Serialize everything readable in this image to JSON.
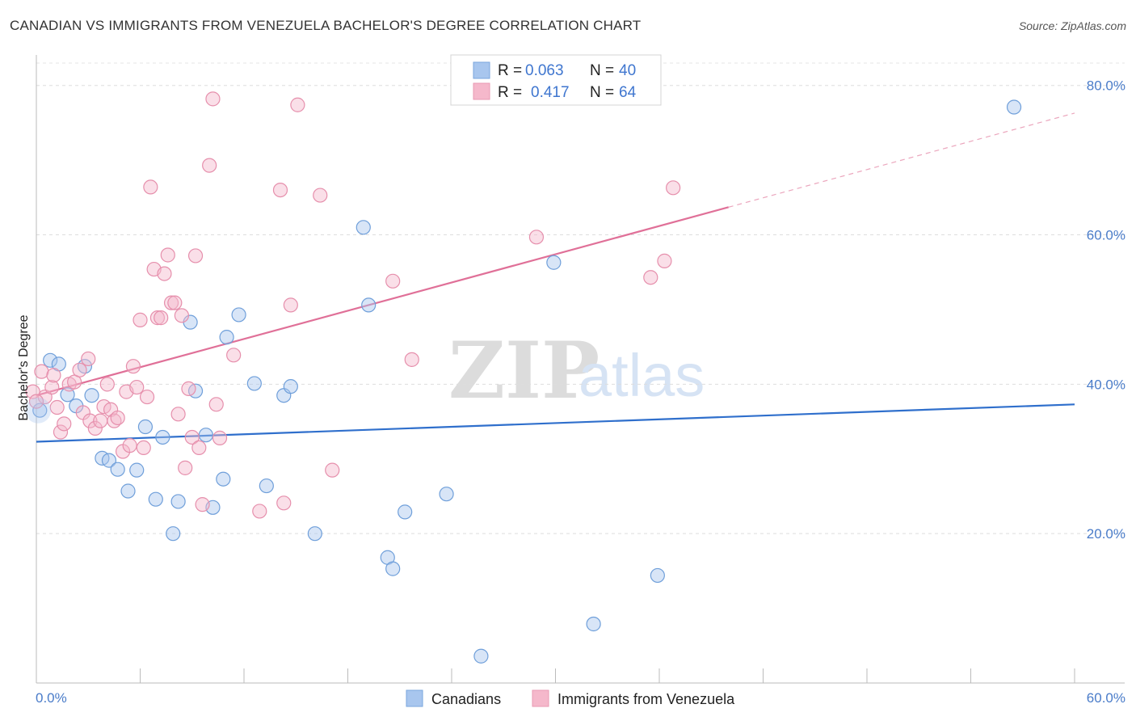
{
  "title": "CANADIAN VS IMMIGRANTS FROM VENEZUELA BACHELOR'S DEGREE CORRELATION CHART",
  "source": "Source: ZipAtlas.com",
  "watermark": {
    "zip": "ZIP",
    "atlas": "atlas"
  },
  "legend_top": [
    {
      "r_label": "R =",
      "r_value": "0.063",
      "n_label": "N =",
      "n_value": "40"
    },
    {
      "r_label": "R =",
      "r_value": "0.417",
      "n_label": "N =",
      "n_value": "64"
    }
  ],
  "legend_bottom": [
    "Canadians",
    "Immigrants from Venezuela"
  ],
  "chart_data": {
    "type": "scatter",
    "title": "CANADIAN VS IMMIGRANTS FROM VENEZUELA BACHELOR'S DEGREE CORRELATION CHART",
    "xlabel": "",
    "ylabel": "Bachelor's Degree",
    "xlim": [
      0,
      60
    ],
    "ylim": [
      0,
      83
    ],
    "x_tick_labels": [
      "0.0%",
      "60.0%"
    ],
    "y_ticks": [
      20,
      40,
      60,
      80
    ],
    "y_tick_labels": [
      "20.0%",
      "40.0%",
      "60.0%",
      "80.0%"
    ],
    "grid": true,
    "colors": {
      "canadians": "#a8c6ee",
      "canadians_line": "#2f6fcc",
      "venezuela": "#f5b8cb",
      "venezuela_line": "#e07098"
    },
    "series": [
      {
        "name": "Canadians",
        "r": 0.063,
        "n": 40,
        "trend": {
          "x": [
            0,
            60
          ],
          "y": [
            32.3,
            37.3
          ]
        },
        "points": [
          [
            0.2,
            36.5
          ],
          [
            0.8,
            43.2
          ],
          [
            1.3,
            42.7
          ],
          [
            1.8,
            38.6
          ],
          [
            2.3,
            37.1
          ],
          [
            2.8,
            42.4
          ],
          [
            3.2,
            38.5
          ],
          [
            3.8,
            30.1
          ],
          [
            4.2,
            29.8
          ],
          [
            4.7,
            28.6
          ],
          [
            5.3,
            25.7
          ],
          [
            5.8,
            28.5
          ],
          [
            6.3,
            34.3
          ],
          [
            6.9,
            24.6
          ],
          [
            7.3,
            32.9
          ],
          [
            7.9,
            20.0
          ],
          [
            8.2,
            24.3
          ],
          [
            8.9,
            48.3
          ],
          [
            9.2,
            39.1
          ],
          [
            9.8,
            33.2
          ],
          [
            10.2,
            23.5
          ],
          [
            10.8,
            27.3
          ],
          [
            11.0,
            46.3
          ],
          [
            11.7,
            49.3
          ],
          [
            12.6,
            40.1
          ],
          [
            13.3,
            26.4
          ],
          [
            14.3,
            38.5
          ],
          [
            14.7,
            39.7
          ],
          [
            16.1,
            20.0
          ],
          [
            18.9,
            61.0
          ],
          [
            19.2,
            50.6
          ],
          [
            20.3,
            16.8
          ],
          [
            20.6,
            15.3
          ],
          [
            21.3,
            22.9
          ],
          [
            23.7,
            25.3
          ],
          [
            25.7,
            3.6
          ],
          [
            29.9,
            56.3
          ],
          [
            32.2,
            7.9
          ],
          [
            35.9,
            14.4
          ],
          [
            56.5,
            77.1
          ]
        ]
      },
      {
        "name": "Immigrants from Venezuela",
        "r": 0.417,
        "n": 64,
        "trend": {
          "x": [
            0,
            40
          ],
          "y": [
            38.5,
            63.7
          ]
        },
        "trend_dashed": {
          "x": [
            40,
            60
          ],
          "y": [
            63.7,
            76.3
          ]
        },
        "points": [
          [
            0.3,
            41.7
          ],
          [
            0.5,
            38.3
          ],
          [
            0.9,
            39.6
          ],
          [
            1.0,
            41.2
          ],
          [
            1.2,
            36.9
          ],
          [
            1.4,
            33.6
          ],
          [
            1.6,
            34.7
          ],
          [
            1.9,
            40.0
          ],
          [
            2.2,
            40.3
          ],
          [
            2.5,
            41.9
          ],
          [
            2.7,
            36.2
          ],
          [
            3.0,
            43.4
          ],
          [
            3.1,
            35.1
          ],
          [
            3.4,
            34.1
          ],
          [
            3.7,
            35.1
          ],
          [
            3.9,
            37.0
          ],
          [
            4.1,
            40.0
          ],
          [
            4.3,
            36.6
          ],
          [
            4.5,
            35.1
          ],
          [
            4.7,
            35.5
          ],
          [
            5.0,
            31.0
          ],
          [
            5.2,
            39.0
          ],
          [
            5.4,
            31.8
          ],
          [
            5.6,
            42.4
          ],
          [
            5.8,
            39.6
          ],
          [
            6.0,
            48.6
          ],
          [
            6.2,
            31.5
          ],
          [
            6.4,
            38.3
          ],
          [
            6.6,
            66.4
          ],
          [
            6.8,
            55.4
          ],
          [
            7.0,
            48.9
          ],
          [
            7.2,
            48.9
          ],
          [
            7.4,
            54.8
          ],
          [
            7.6,
            57.3
          ],
          [
            7.8,
            50.9
          ],
          [
            8.0,
            50.9
          ],
          [
            8.2,
            36.0
          ],
          [
            8.4,
            49.2
          ],
          [
            8.6,
            28.8
          ],
          [
            8.8,
            39.4
          ],
          [
            9.0,
            32.9
          ],
          [
            9.2,
            57.2
          ],
          [
            9.4,
            31.5
          ],
          [
            9.6,
            23.9
          ],
          [
            10.0,
            69.3
          ],
          [
            10.2,
            78.2
          ],
          [
            10.4,
            37.3
          ],
          [
            10.6,
            32.8
          ],
          [
            11.4,
            43.9
          ],
          [
            12.9,
            23.0
          ],
          [
            14.1,
            66.0
          ],
          [
            14.3,
            24.1
          ],
          [
            14.7,
            50.6
          ],
          [
            15.1,
            77.4
          ],
          [
            16.4,
            65.3
          ],
          [
            17.1,
            28.5
          ],
          [
            20.6,
            53.8
          ],
          [
            21.7,
            43.3
          ],
          [
            28.9,
            59.7
          ],
          [
            35.5,
            54.3
          ],
          [
            36.3,
            56.5
          ],
          [
            36.8,
            66.3
          ],
          [
            -0.2,
            39.0
          ],
          [
            0.0,
            37.7
          ]
        ]
      }
    ]
  }
}
